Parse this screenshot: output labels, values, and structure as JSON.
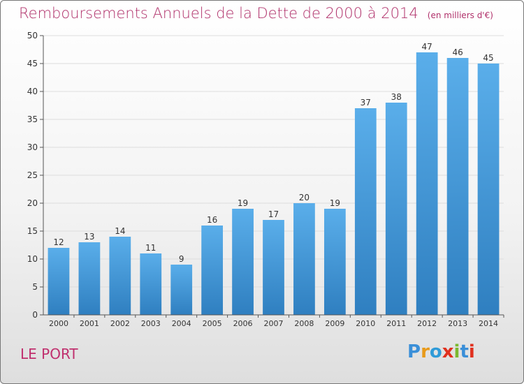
{
  "header": {
    "title": "Remboursements Annuels de la Dette de 2000 à 2014",
    "unit": "(en milliers d'€)"
  },
  "footer": {
    "city": "LE PORT"
  },
  "brand": {
    "name": "Proxiti",
    "letters": [
      "P",
      "r",
      "o",
      "x",
      "i",
      "t",
      "i"
    ],
    "letter_colors": [
      "#3a8fd8",
      "#e89a1a",
      "#2f9bd8",
      "#e0301e",
      "#7cb82f",
      "#3a8fd8",
      "#e0301e"
    ]
  },
  "colors": {
    "title": "#b0306a",
    "bar_top": "#5aaeea",
    "bar_bottom": "#2f7fc0",
    "axis": "#555555",
    "grid": "#dddddd"
  },
  "chart_data": {
    "type": "bar",
    "title": "Remboursements Annuels de la Dette de 2000 à 2014",
    "xlabel": "",
    "ylabel": "",
    "categories": [
      "2000",
      "2001",
      "2002",
      "2003",
      "2004",
      "2005",
      "2006",
      "2007",
      "2008",
      "2009",
      "2010",
      "2011",
      "2012",
      "2013",
      "2014"
    ],
    "values": [
      12,
      13,
      14,
      11,
      9,
      16,
      19,
      17,
      20,
      19,
      37,
      38,
      47,
      46,
      45
    ],
    "ylim": [
      0,
      50
    ],
    "yticks": [
      0,
      5,
      10,
      15,
      20,
      25,
      30,
      35,
      40,
      45,
      50
    ],
    "grid": true,
    "data_labels": true
  }
}
